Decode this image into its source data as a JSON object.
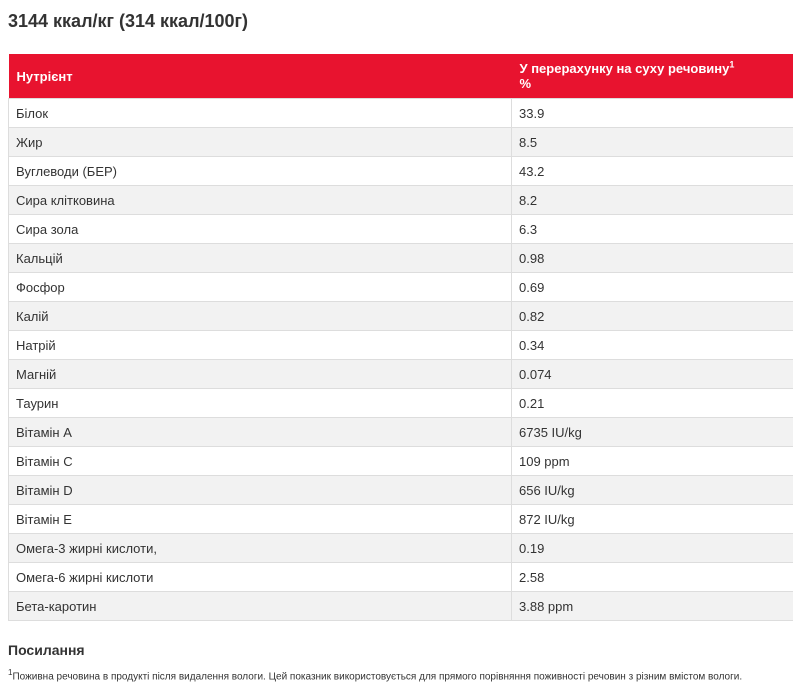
{
  "title": "3144 ккал/кг (314 ккал/100г)",
  "table": {
    "headers": {
      "nutrient": "Нутрієнт",
      "dry_matter": "У перерахунку на суху речовину",
      "dry_matter_sup": "1",
      "unit": "%"
    },
    "rows": [
      {
        "name": "Білок",
        "value": "33.9"
      },
      {
        "name": "Жир",
        "value": "8.5"
      },
      {
        "name": "Вуглеводи (БЕР)",
        "value": "43.2"
      },
      {
        "name": "Сира клітковина",
        "value": "8.2"
      },
      {
        "name": "Сира зола",
        "value": "6.3"
      },
      {
        "name": "Кальцій",
        "value": "0.98"
      },
      {
        "name": "Фосфор",
        "value": "0.69"
      },
      {
        "name": "Калій",
        "value": "0.82"
      },
      {
        "name": "Натрій",
        "value": "0.34"
      },
      {
        "name": "Магній",
        "value": "0.074"
      },
      {
        "name": "Таурин",
        "value": "0.21"
      },
      {
        "name": "Вітамін A",
        "value": "6735 IU/kg"
      },
      {
        "name": "Вітамін C",
        "value": "109 ppm"
      },
      {
        "name": "Вітамін D",
        "value": "656 IU/kg"
      },
      {
        "name": "Вітамін E",
        "value": "872 IU/kg"
      },
      {
        "name": "Омега-3 жирні кислоти,",
        "value": "0.19"
      },
      {
        "name": "Омега-6 жирні кислоти",
        "value": "2.58"
      },
      {
        "name": "Бета-каротин",
        "value": "3.88 ppm"
      }
    ]
  },
  "references": {
    "heading": "Посилання",
    "footnote_marker": "1",
    "footnote_text": "Поживна речовина в продукті після видалення вологи. Цей показник використовується для прямого порівняння поживності речовин з різним вмістом вологи."
  },
  "colors": {
    "header_bg": "#e8132f",
    "header_text": "#ffffff",
    "row_alt_bg": "#f2f2f2",
    "border": "#dddddd"
  }
}
